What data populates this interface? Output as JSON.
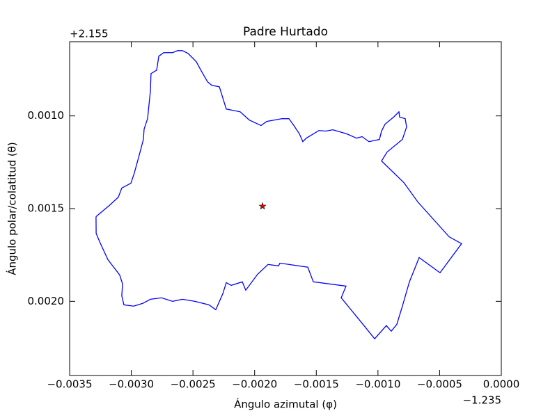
{
  "chart_data": {
    "type": "line",
    "title": "Padre Hurtado",
    "x_label": "Ángulo azimutal (φ)",
    "y_label": "Ángulo polar/colatitud (θ)",
    "x_offset": "−1.235",
    "y_offset": "+2.155",
    "xlim": [
      -0.0035,
      0.0
    ],
    "ylim": [
      0.0024,
      0.0006
    ],
    "xticks": [
      {
        "value": -0.0035,
        "label": "−0.0035"
      },
      {
        "value": -0.003,
        "label": "−0.0030"
      },
      {
        "value": -0.0025,
        "label": "−0.0025"
      },
      {
        "value": -0.002,
        "label": "−0.0020"
      },
      {
        "value": -0.0015,
        "label": "−0.0015"
      },
      {
        "value": -0.001,
        "label": "−0.0010"
      },
      {
        "value": -0.0005,
        "label": "−0.0005"
      },
      {
        "value": 0.0,
        "label": "0.0000"
      }
    ],
    "yticks": [
      {
        "value": 0.001,
        "label": "0.0010"
      },
      {
        "value": 0.0015,
        "label": "0.0015"
      },
      {
        "value": 0.002,
        "label": "0.0020"
      }
    ],
    "series": [
      {
        "color": "#0000ff",
        "x": [
          -0.003286,
          -0.003178,
          -0.003105,
          -0.003077,
          -0.003003,
          -0.002975,
          -0.002935,
          -0.002902,
          -0.002896,
          -0.002868,
          -0.002845,
          -0.00284,
          -0.002794,
          -0.002777,
          -0.002738,
          -0.002665,
          -0.002625,
          -0.002586,
          -0.00254,
          -0.002473,
          -0.002427,
          -0.002382,
          -0.002348,
          -0.002286,
          -0.002258,
          -0.00223,
          -0.002117,
          -0.002044,
          -0.001948,
          -0.001902,
          -0.001778,
          -0.001722,
          -0.001682,
          -0.001637,
          -0.001609,
          -0.001581,
          -0.001479,
          -0.001423,
          -0.001366,
          -0.001253,
          -0.001174,
          -0.001129,
          -0.001073,
          -0.000988,
          -0.000971,
          -0.000943,
          -0.000869,
          -0.00083,
          -0.000824,
          -0.000779,
          -0.000768,
          -0.000802,
          -0.000926,
          -0.000971,
          -0.00079,
          -0.000677,
          -0.000423,
          -0.000322,
          -0.000497,
          -0.000666,
          -0.000745,
          -0.000802,
          -0.000847,
          -0.000892,
          -0.000932,
          -0.001027,
          -0.001118,
          -0.001298,
          -0.001259,
          -0.001524,
          -0.001569,
          -0.001795,
          -0.001806,
          -0.001891,
          -0.001976,
          -0.002072,
          -0.0021,
          -0.00219,
          -0.00223,
          -0.002258,
          -0.002315,
          -0.002371,
          -0.002484,
          -0.002586,
          -0.002665,
          -0.002755,
          -0.002845,
          -0.002907,
          -0.002981,
          -0.00306,
          -0.003077,
          -0.003071,
          -0.003094,
          -0.00319,
          -0.003257,
          -0.003285,
          -0.003286
        ],
        "values": [
          0.001543,
          0.001483,
          0.001438,
          0.001389,
          0.001363,
          0.001307,
          0.00121,
          0.001127,
          0.001071,
          0.001015,
          0.000865,
          0.000772,
          0.000753,
          0.000678,
          0.000659,
          0.000659,
          0.000648,
          0.000648,
          0.000663,
          0.000708,
          0.000764,
          0.000816,
          0.000835,
          0.000843,
          0.000903,
          0.000963,
          0.000978,
          0.001022,
          0.001052,
          0.00103,
          0.001015,
          0.001015,
          0.001052,
          0.001097,
          0.001139,
          0.00112,
          0.001079,
          0.001082,
          0.001075,
          0.001097,
          0.00112,
          0.001112,
          0.001139,
          0.001127,
          0.001082,
          0.001045,
          0.001004,
          0.000978,
          0.001007,
          0.001015,
          0.00106,
          0.001127,
          0.001195,
          0.001243,
          0.00136,
          0.001464,
          0.001652,
          0.001689,
          0.001846,
          0.001764,
          0.001895,
          0.002026,
          0.002124,
          0.002161,
          0.002131,
          0.002202,
          0.002127,
          0.001981,
          0.001918,
          0.001895,
          0.001816,
          0.001794,
          0.001809,
          0.001801,
          0.001854,
          0.00194,
          0.001895,
          0.001914,
          0.001899,
          0.001959,
          0.002045,
          0.002019,
          0.002,
          0.001989,
          0.002,
          0.001981,
          0.001989,
          0.002011,
          0.002026,
          0.002019,
          0.00197,
          0.001906,
          0.001858,
          0.001775,
          0.001678,
          0.001633,
          0.001543
        ]
      },
      {
        "color": "#ff0000",
        "marker": "star",
        "x": [
          -0.001936
        ],
        "values": [
          0.001487
        ]
      }
    ]
  }
}
